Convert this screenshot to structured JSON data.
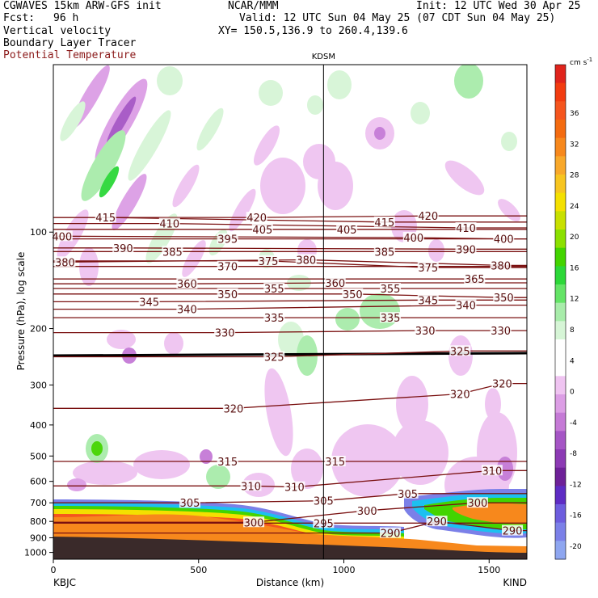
{
  "header": {
    "title_left": "CGWAVES 15km ARW-GFS init",
    "fcst_label": "Fcst:",
    "fcst_value": "96 h",
    "field1": "Vertical velocity",
    "field2": "Boundary Layer Tracer",
    "field3": "Potential Temperature",
    "center": "NCAR/MMM",
    "init": "Init: 12 UTC Wed 30 Apr 25",
    "valid": "Valid: 12 UTC Sun 04 May 25 (07 CDT Sun 04 May 25)",
    "xy": "XY= 150.5,136.9 to 260.4,139.6",
    "station_top": "KDSM"
  },
  "colors": {
    "theta": "#7a1010",
    "field3_text": "#8b1a1a"
  },
  "chart_data": {
    "type": "cross-section",
    "xlabel": "Distance (km)",
    "ylabel": "Pressure (hPa), log scale",
    "x_ticks": [
      0,
      500,
      1000,
      1500
    ],
    "x_range": [
      0,
      1630
    ],
    "y_ticks": [
      100,
      200,
      300,
      400,
      500,
      600,
      700,
      800,
      900,
      1000
    ],
    "y_range": [
      1050,
      30
    ],
    "y_scale": "log",
    "left_station": "KBJC",
    "right_station": "KIND",
    "marker_station": "KDSM",
    "marker_x": 930,
    "colorbar": {
      "unit": "cm s",
      "unit_exp": "-1",
      "labels": [
        36,
        32,
        28,
        24,
        20,
        16,
        12,
        8,
        4,
        0,
        -4,
        -8,
        -12,
        -16,
        -20
      ],
      "colors": [
        "#e0241c",
        "#f23c10",
        "#f5551e",
        "#f46b10",
        "#f7881c",
        "#f8a82a",
        "#f7c520",
        "#f4e000",
        "#c8e000",
        "#8be000",
        "#43d400",
        "#2cd838",
        "#64e466",
        "#a8ecaa",
        "#d6f5d6",
        "#ffffff",
        "#ffffff",
        "#efc4f1",
        "#dc9ee5",
        "#c57ad6",
        "#a555c5",
        "#8c3ab4",
        "#6e2198",
        "#5e2cc4",
        "#6d5dde",
        "#7b80e8",
        "#8ea6f0"
      ]
    },
    "theta_labels": [
      {
        "v": "415",
        "x": 180,
        "p": 90
      },
      {
        "v": "420",
        "x": 700,
        "p": 90
      },
      {
        "v": "420",
        "x": 1290,
        "p": 89
      },
      {
        "v": "410",
        "x": 400,
        "p": 94
      },
      {
        "v": "405",
        "x": 720,
        "p": 98
      },
      {
        "v": "405",
        "x": 1010,
        "p": 98
      },
      {
        "v": "415",
        "x": 1140,
        "p": 93
      },
      {
        "v": "410",
        "x": 1420,
        "p": 97
      },
      {
        "v": "400",
        "x": 30,
        "p": 103
      },
      {
        "v": "400",
        "x": 1240,
        "p": 104
      },
      {
        "v": "400",
        "x": 1550,
        "p": 105
      },
      {
        "v": "395",
        "x": 600,
        "p": 105
      },
      {
        "v": "390",
        "x": 240,
        "p": 112
      },
      {
        "v": "390",
        "x": 1420,
        "p": 113
      },
      {
        "v": "385",
        "x": 410,
        "p": 115
      },
      {
        "v": "385",
        "x": 1140,
        "p": 115
      },
      {
        "v": "380",
        "x": 40,
        "p": 124
      },
      {
        "v": "380",
        "x": 870,
        "p": 122
      },
      {
        "v": "380",
        "x": 1540,
        "p": 127
      },
      {
        "v": "375",
        "x": 740,
        "p": 123
      },
      {
        "v": "375",
        "x": 1290,
        "p": 129
      },
      {
        "v": "370",
        "x": 600,
        "p": 128
      },
      {
        "v": "365",
        "x": 1450,
        "p": 140
      },
      {
        "v": "360",
        "x": 460,
        "p": 145
      },
      {
        "v": "360",
        "x": 970,
        "p": 144
      },
      {
        "v": "355",
        "x": 760,
        "p": 150
      },
      {
        "v": "355",
        "x": 1160,
        "p": 150
      },
      {
        "v": "350",
        "x": 600,
        "p": 156
      },
      {
        "v": "350",
        "x": 1030,
        "p": 156
      },
      {
        "v": "350",
        "x": 1550,
        "p": 160
      },
      {
        "v": "345",
        "x": 330,
        "p": 165
      },
      {
        "v": "345",
        "x": 1290,
        "p": 163
      },
      {
        "v": "340",
        "x": 460,
        "p": 174
      },
      {
        "v": "340",
        "x": 1420,
        "p": 169
      },
      {
        "v": "335",
        "x": 760,
        "p": 185
      },
      {
        "v": "335",
        "x": 1160,
        "p": 185
      },
      {
        "v": "330",
        "x": 590,
        "p": 206
      },
      {
        "v": "330",
        "x": 1280,
        "p": 203
      },
      {
        "v": "330",
        "x": 1540,
        "p": 203
      },
      {
        "v": "325",
        "x": 760,
        "p": 245
      },
      {
        "v": "325",
        "x": 1400,
        "p": 235
      },
      {
        "v": "320",
        "x": 620,
        "p": 355
      },
      {
        "v": "320",
        "x": 1400,
        "p": 320
      },
      {
        "v": "320",
        "x": 1545,
        "p": 297
      },
      {
        "v": "315",
        "x": 600,
        "p": 520
      },
      {
        "v": "315",
        "x": 970,
        "p": 520
      },
      {
        "v": "310",
        "x": 680,
        "p": 620
      },
      {
        "v": "310",
        "x": 830,
        "p": 625
      },
      {
        "v": "310",
        "x": 1510,
        "p": 555
      },
      {
        "v": "305",
        "x": 470,
        "p": 700
      },
      {
        "v": "305",
        "x": 930,
        "p": 690
      },
      {
        "v": "305",
        "x": 1220,
        "p": 655
      },
      {
        "v": "300",
        "x": 690,
        "p": 805
      },
      {
        "v": "300",
        "x": 1080,
        "p": 740
      },
      {
        "v": "300",
        "x": 1460,
        "p": 700
      },
      {
        "v": "295",
        "x": 930,
        "p": 810
      },
      {
        "v": "290",
        "x": 1160,
        "p": 870
      },
      {
        "v": "290",
        "x": 1320,
        "p": 800
      },
      {
        "v": "290",
        "x": 1580,
        "p": 855
      }
    ]
  }
}
